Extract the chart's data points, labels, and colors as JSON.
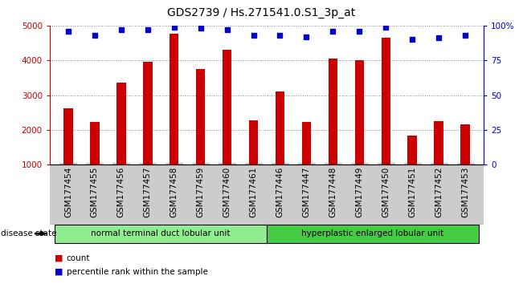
{
  "title": "GDS2739 / Hs.271541.0.S1_3p_at",
  "samples": [
    "GSM177454",
    "GSM177455",
    "GSM177456",
    "GSM177457",
    "GSM177458",
    "GSM177459",
    "GSM177460",
    "GSM177461",
    "GSM177446",
    "GSM177447",
    "GSM177448",
    "GSM177449",
    "GSM177450",
    "GSM177451",
    "GSM177452",
    "GSM177453"
  ],
  "counts": [
    2620,
    2230,
    3350,
    3960,
    4760,
    3750,
    4300,
    2280,
    3100,
    2230,
    4060,
    4010,
    4660,
    1840,
    2260,
    2160
  ],
  "percentiles": [
    96,
    93,
    97,
    97,
    99,
    98,
    97,
    93,
    93,
    92,
    96,
    96,
    99,
    90,
    91,
    93
  ],
  "bar_color": "#cc0000",
  "marker_color": "#0000cc",
  "group1_label": "normal terminal duct lobular unit",
  "group1_color": "#90ee90",
  "group2_label": "hyperplastic enlarged lobular unit",
  "group2_color": "#44cc44",
  "group1_count": 8,
  "group2_count": 8,
  "ylim_left": [
    1000,
    5000
  ],
  "ylim_right": [
    0,
    100
  ],
  "yticks_left": [
    1000,
    2000,
    3000,
    4000,
    5000
  ],
  "yticks_right": [
    0,
    25,
    50,
    75,
    100
  ],
  "yticklabels_right": [
    "0",
    "25",
    "50",
    "75",
    "100%"
  ],
  "left_axis_color": "#cc0000",
  "right_axis_color": "#0000cc",
  "legend_count_label": "count",
  "legend_pct_label": "percentile rank within the sample",
  "disease_state_label": "disease state",
  "bar_width": 0.35,
  "tick_label_rotation": 90,
  "title_fontsize": 10,
  "tick_fontsize": 7.5,
  "grid_color": "#888888",
  "xticklabel_bg": "#cccccc",
  "plot_bg": "#ffffff"
}
